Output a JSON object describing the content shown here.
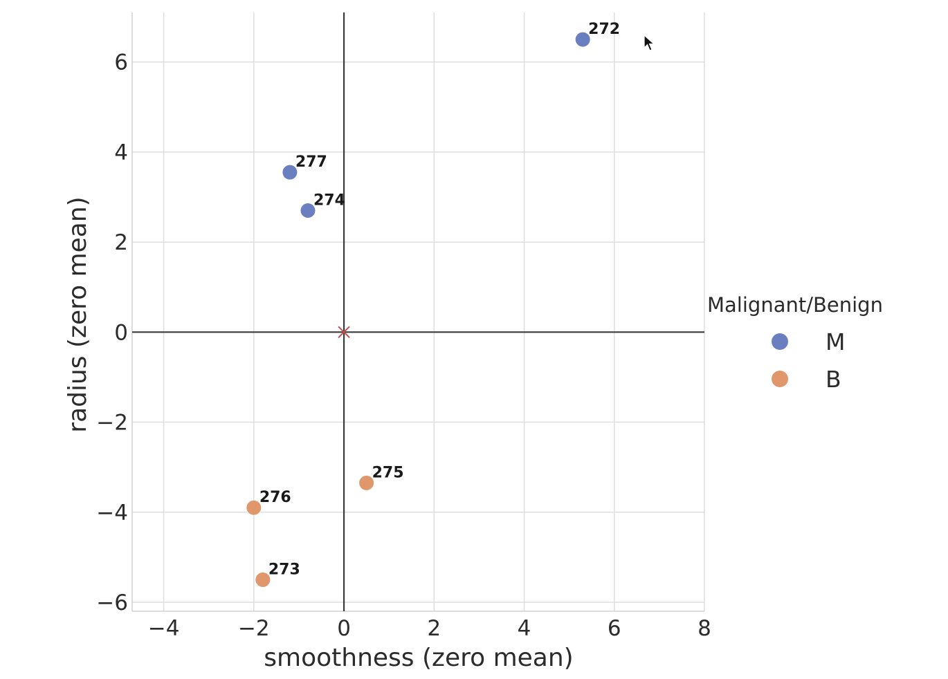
{
  "chart_data": {
    "type": "scatter",
    "xlabel": "smoothness (zero mean)",
    "ylabel": "radius (zero mean)",
    "xlim": [
      -4.7,
      8
    ],
    "ylim": [
      -6.2,
      7.1
    ],
    "xticks": [
      -4,
      -2,
      0,
      2,
      4,
      6,
      8
    ],
    "xtick_labels": [
      "−4",
      "−2",
      "0",
      "2",
      "4",
      "6",
      "8"
    ],
    "yticks": [
      -6,
      -4,
      -2,
      0,
      2,
      4,
      6
    ],
    "ytick_labels": [
      "−6",
      "−4",
      "−2",
      "0",
      "2",
      "4",
      "6"
    ],
    "grid": true,
    "reference_lines": {
      "x": 0,
      "y": 0
    },
    "center_marker": {
      "x": 0,
      "y": 0,
      "marker": "x",
      "color": "#c44e52"
    },
    "legend": {
      "title": "Malignant/Benign",
      "placement": "outside-right",
      "entries": [
        {
          "label": "M",
          "color": "#6a7fbf"
        },
        {
          "label": "B",
          "color": "#e0976b"
        }
      ]
    },
    "series": [
      {
        "name": "M",
        "color": "#6a7fbf",
        "points": [
          {
            "x": 5.3,
            "y": 6.5,
            "label": "272"
          },
          {
            "x": -1.2,
            "y": 3.55,
            "label": "277"
          },
          {
            "x": -0.8,
            "y": 2.7,
            "label": "274"
          }
        ]
      },
      {
        "name": "B",
        "color": "#e0976b",
        "points": [
          {
            "x": 0.5,
            "y": -3.35,
            "label": "275"
          },
          {
            "x": -2.0,
            "y": -3.9,
            "label": "276"
          },
          {
            "x": -1.8,
            "y": -5.5,
            "label": "273"
          }
        ]
      }
    ]
  }
}
